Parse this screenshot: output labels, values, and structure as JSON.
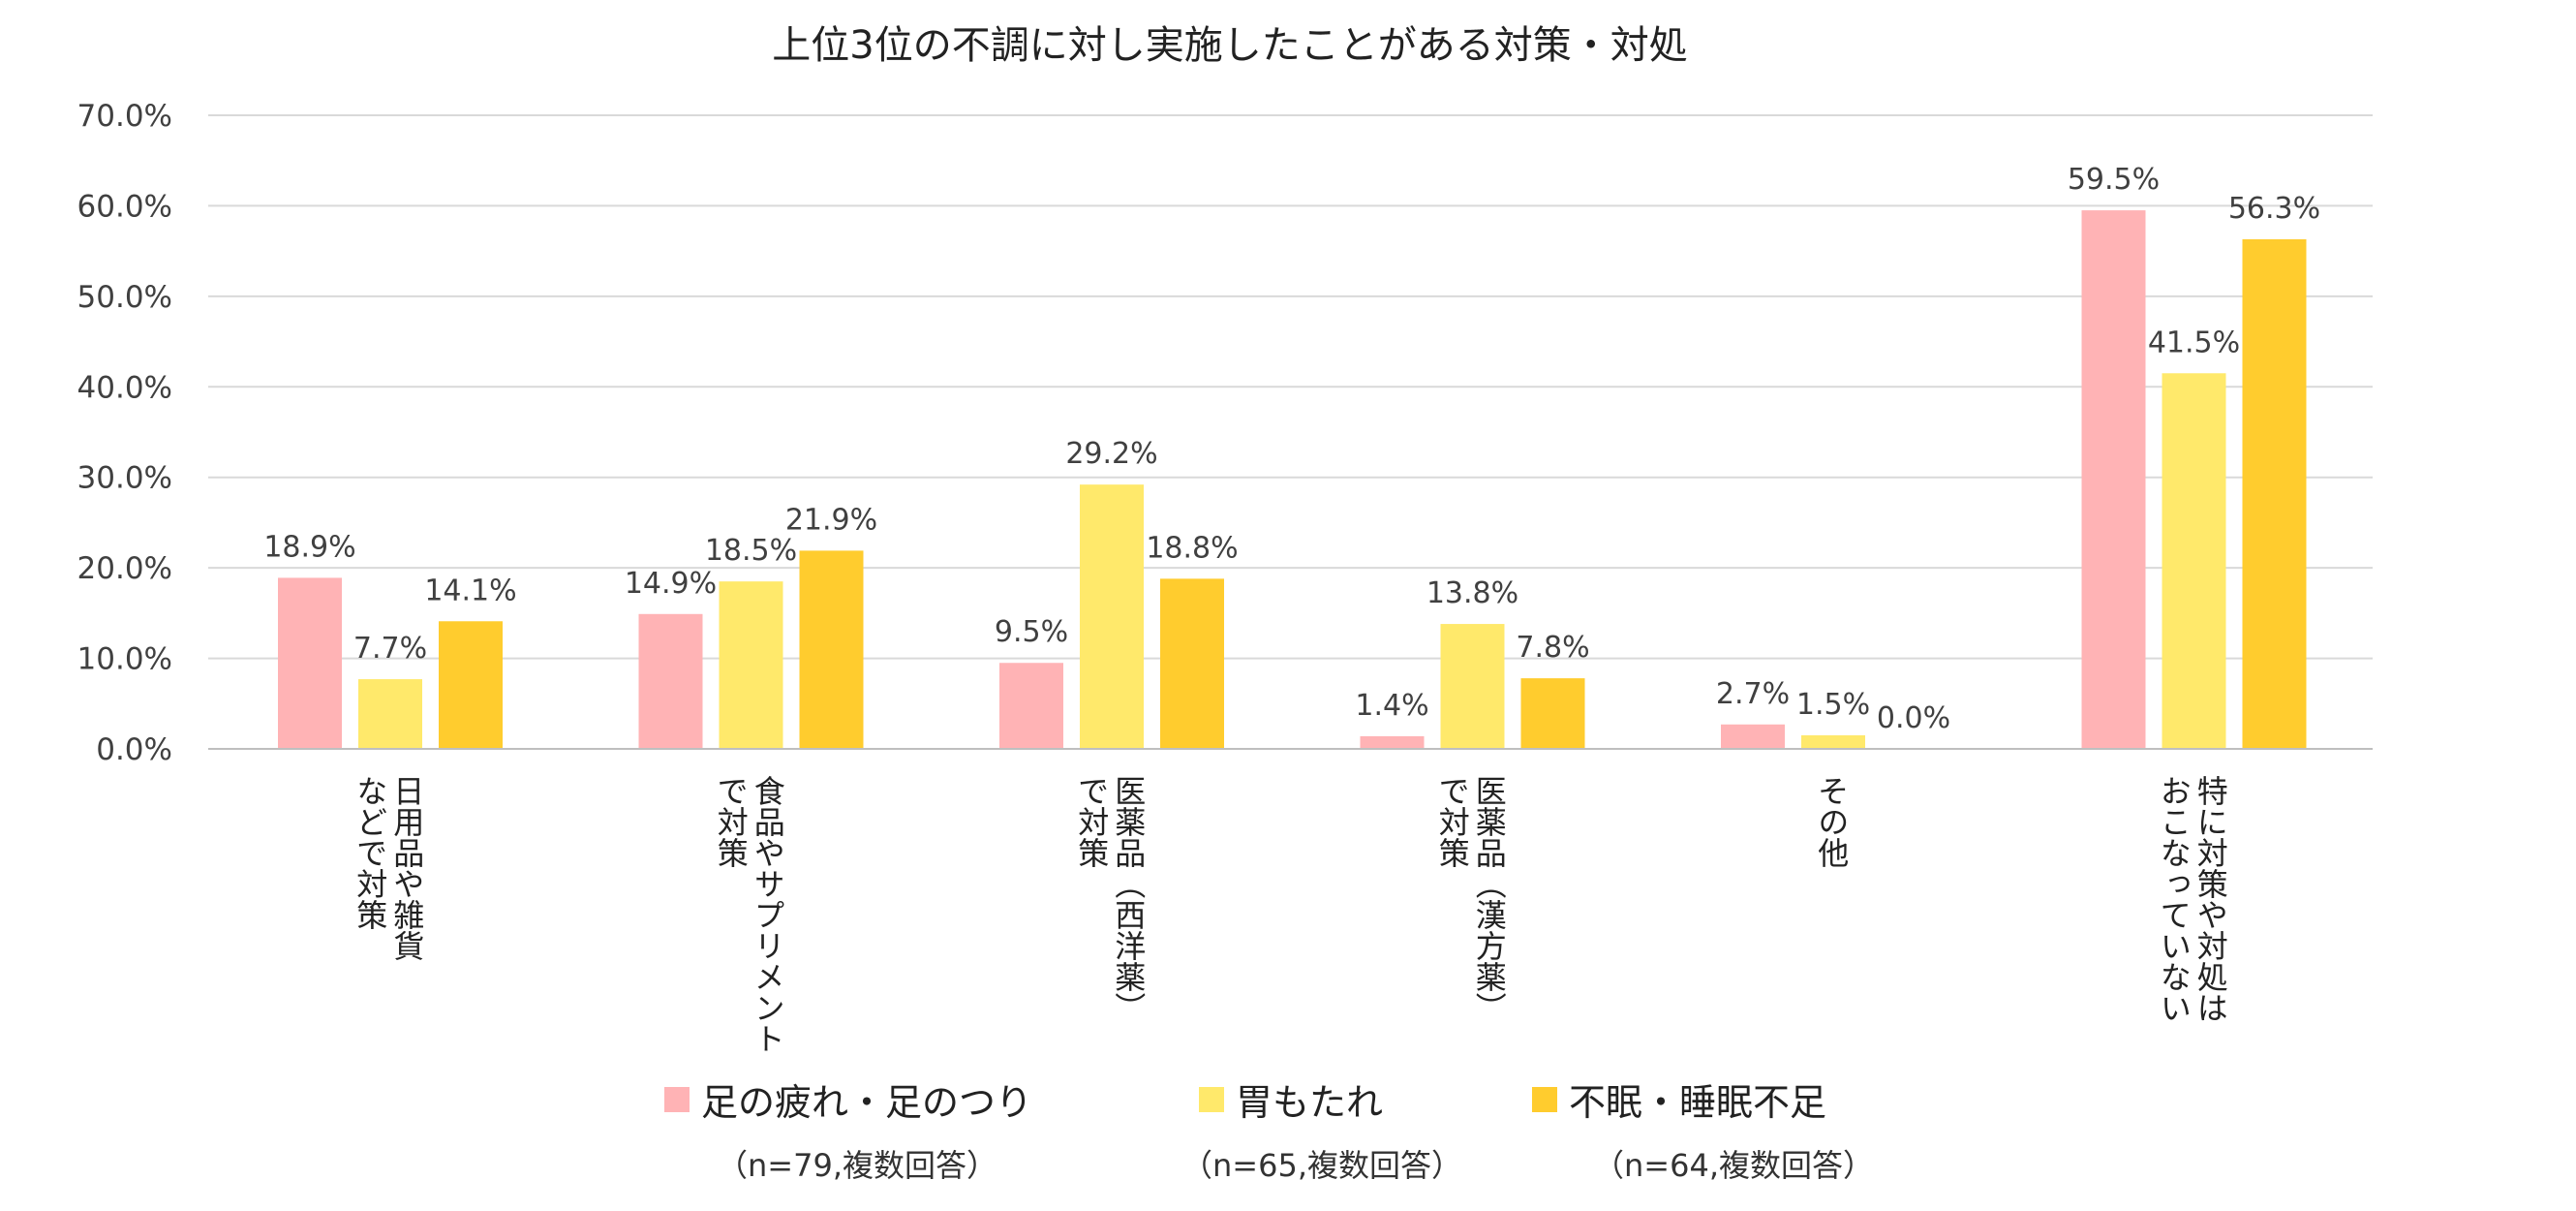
{
  "chart_data": {
    "type": "bar",
    "title": "上位3位の不調に対し実施したことがある対策・対処",
    "categories": [
      [
        "日用品や雑貨",
        "などで対策"
      ],
      [
        "食品やサプリメント",
        "で対策"
      ],
      [
        "医薬品（西洋薬）",
        "で対策"
      ],
      [
        "医薬品（漢方薬）",
        "で対策"
      ],
      [
        "その他"
      ],
      [
        "特に対策や対処は",
        "おこなっていない"
      ]
    ],
    "series": [
      {
        "name": "足の疲れ・足のつり",
        "note": "（n=79,複数回答）",
        "color": "#ffb3b5",
        "values": [
          18.9,
          14.9,
          9.5,
          1.4,
          2.7,
          59.5
        ],
        "labels": [
          "18.9%",
          "14.9%",
          "9.5%",
          "1.4%",
          "2.7%",
          "59.5%"
        ]
      },
      {
        "name": "胃もたれ",
        "note": "（n=65,複数回答）",
        "color": "#ffe96b",
        "values": [
          7.7,
          18.5,
          29.2,
          13.8,
          1.5,
          41.5
        ],
        "labels": [
          "7.7%",
          "18.5%",
          "29.2%",
          "13.8%",
          "1.5%",
          "41.5%"
        ]
      },
      {
        "name": "不眠・睡眠不足",
        "note": "（n=64,複数回答）",
        "color": "#ffcc2e",
        "values": [
          14.1,
          21.9,
          18.8,
          7.8,
          0.0,
          56.3
        ],
        "labels": [
          "14.1%",
          "21.9%",
          "18.8%",
          "7.8%",
          "0.0%",
          "56.3%"
        ]
      }
    ],
    "ylim": [
      0,
      70
    ],
    "yticks": [
      0,
      10,
      20,
      30,
      40,
      50,
      60,
      70
    ],
    "ytick_labels": [
      "0.0%",
      "10.0%",
      "20.0%",
      "30.0%",
      "40.0%",
      "50.0%",
      "60.0%",
      "70.0%"
    ],
    "grid": true,
    "gridline_color": "#d9d9d9",
    "xlabel": "",
    "ylabel": "",
    "legend_position": "bottom"
  }
}
